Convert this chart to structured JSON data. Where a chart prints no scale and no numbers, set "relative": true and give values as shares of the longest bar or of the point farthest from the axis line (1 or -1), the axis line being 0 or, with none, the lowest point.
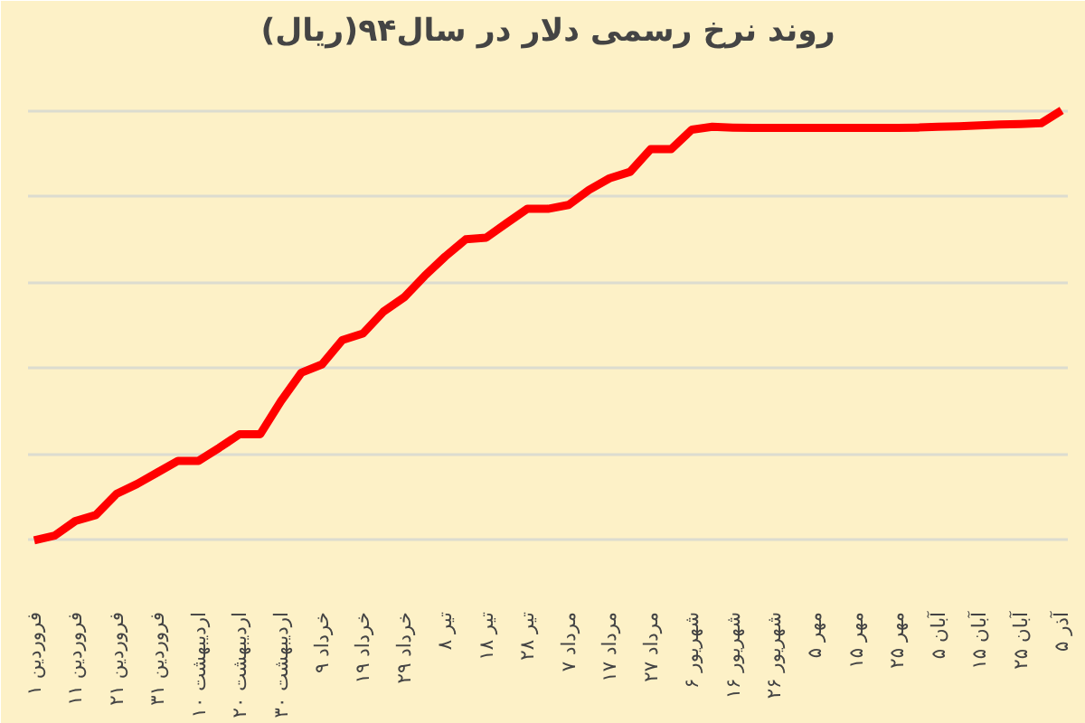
{
  "chart_data": {
    "type": "line",
    "title": "روند نرخ رسمی دلار در سال۹۴(ریال)",
    "relative": true,
    "grid": "y",
    "marker": "none",
    "line_style": "solid",
    "categories": [
      "۱ فروردین",
      null,
      "۱۱ فروردین",
      null,
      "۲۱ فروردین",
      null,
      "۳۱ فروردین",
      null,
      "۱۰ اردیبهشت",
      null,
      "۲۰ اردیبهشت",
      null,
      "۳۰ اردیبهشت",
      null,
      "۹ خرداد",
      null,
      "۱۹ خرداد",
      null,
      "۲۹ خرداد",
      null,
      "۸ تیر",
      null,
      "۱۸ تیر",
      null,
      "۲۸ تیر",
      null,
      "۷ مرداد",
      null,
      "۱۷ مرداد",
      null,
      "۲۷ مرداد",
      null,
      "۶ شهریور",
      null,
      "۱۶ شهریور",
      null,
      "۲۶ شهریور",
      null,
      "۵ مهر",
      null,
      "۱۵ مهر",
      null,
      "۲۵ مهر",
      null,
      "۵ آبان",
      null,
      "۱۵ آبان",
      null,
      "۲۵ آبان",
      null,
      "۵ آذر"
    ],
    "series": [
      {
        "color": "#ff0000",
        "values": [
          0,
          0.011,
          0.045,
          0.059,
          0.108,
          0.131,
          0.158,
          0.185,
          0.185,
          0.215,
          0.247,
          0.247,
          0.323,
          0.39,
          0.409,
          0.466,
          0.481,
          0.532,
          0.565,
          0.615,
          0.66,
          0.7,
          0.704,
          0.738,
          0.771,
          0.771,
          0.78,
          0.815,
          0.842,
          0.857,
          0.91,
          0.91,
          0.955,
          0.962,
          0.96,
          0.959,
          0.959,
          0.959,
          0.959,
          0.959,
          0.959,
          0.959,
          0.959,
          0.96,
          0.962,
          0.963,
          0.965,
          0.967,
          0.968,
          0.97,
          1
        ]
      }
    ]
  }
}
